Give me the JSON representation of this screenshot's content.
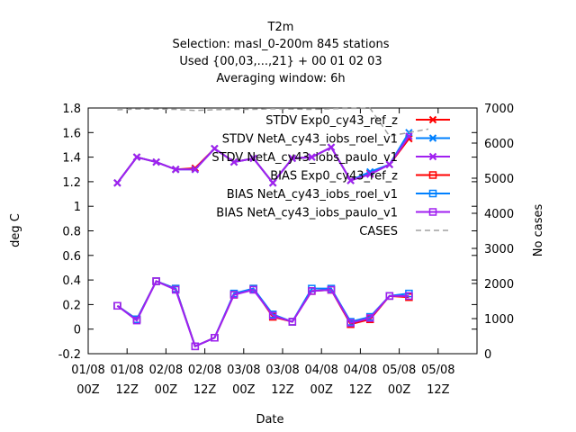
{
  "chart_data": {
    "type": "line",
    "title_lines": [
      "T2m",
      "Selection: masl_0-200m    845 stations",
      "Used {00,03,...,21} + 00 01 02 03",
      "Averaging window:  6h"
    ],
    "xlabel": "Date",
    "ylabel": "deg C",
    "y2label": "No cases",
    "ylim": [
      -0.2,
      1.8
    ],
    "y2lim": [
      0,
      7000
    ],
    "y_ticks": [
      "-0.2",
      "0",
      "0.2",
      "0.4",
      "0.6",
      "0.8",
      "1",
      "1.2",
      "1.4",
      "1.6",
      "1.8"
    ],
    "y2_ticks": [
      "0",
      "1000",
      "2000",
      "3000",
      "4000",
      "5000",
      "6000",
      "7000"
    ],
    "x_ticks": [
      {
        "t": 0,
        "line1": "01/08",
        "line2": "00Z"
      },
      {
        "t": 12,
        "line1": "01/08",
        "line2": "12Z"
      },
      {
        "t": 24,
        "line1": "02/08",
        "line2": "00Z"
      },
      {
        "t": 36,
        "line1": "02/08",
        "line2": "12Z"
      },
      {
        "t": 48,
        "line1": "03/08",
        "line2": "00Z"
      },
      {
        "t": 60,
        "line1": "03/08",
        "line2": "12Z"
      },
      {
        "t": 72,
        "line1": "04/08",
        "line2": "00Z"
      },
      {
        "t": 84,
        "line1": "04/08",
        "line2": "12Z"
      },
      {
        "t": 96,
        "line1": "05/08",
        "line2": "00Z"
      },
      {
        "t": 108,
        "line1": "05/08",
        "line2": "12Z"
      }
    ],
    "x": [
      9,
      15,
      21,
      27,
      33,
      39,
      45,
      51,
      57,
      63,
      69,
      75,
      81,
      87,
      93,
      99
    ],
    "series": [
      {
        "name": "STDV Exp0_cy43_ref_z",
        "color": "#ff0000",
        "marker": "x",
        "axis": "y1",
        "values": [
          1.19,
          1.4,
          1.36,
          1.3,
          1.31,
          1.47,
          1.36,
          1.39,
          1.19,
          1.39,
          1.4,
          1.48,
          1.21,
          1.27,
          1.34,
          1.55
        ]
      },
      {
        "name": "STDV NetA_cy43_iobs_roel_v1",
        "color": "#0080ff",
        "marker": "x",
        "axis": "y1",
        "values": [
          1.19,
          1.4,
          1.36,
          1.3,
          1.3,
          1.47,
          1.36,
          1.39,
          1.19,
          1.39,
          1.4,
          1.48,
          1.21,
          1.28,
          1.34,
          1.6
        ]
      },
      {
        "name": "STDV NetA_cy43_iobs_paulo_v1",
        "color": "#a020f0",
        "marker": "x",
        "axis": "y1",
        "values": [
          1.19,
          1.4,
          1.36,
          1.3,
          1.3,
          1.47,
          1.36,
          1.39,
          1.19,
          1.39,
          1.4,
          1.48,
          1.21,
          1.26,
          1.34,
          1.57
        ]
      },
      {
        "name": "BIAS Exp0_cy43_ref_z",
        "color": "#ff0000",
        "marker": "square",
        "axis": "y1",
        "values": [
          0.19,
          0.08,
          0.39,
          0.33,
          -0.14,
          -0.07,
          0.28,
          0.33,
          0.1,
          0.06,
          0.31,
          0.32,
          0.04,
          0.08,
          0.27,
          0.26
        ]
      },
      {
        "name": "BIAS NetA_cy43_iobs_roel_v1",
        "color": "#0080ff",
        "marker": "square",
        "axis": "y1",
        "values": [
          0.19,
          0.08,
          0.39,
          0.33,
          -0.14,
          -0.07,
          0.29,
          0.33,
          0.12,
          0.06,
          0.33,
          0.33,
          0.06,
          0.1,
          0.27,
          0.29
        ]
      },
      {
        "name": "BIAS NetA_cy43_iobs_paulo_v1",
        "color": "#a020f0",
        "marker": "square",
        "axis": "y1",
        "values": [
          0.19,
          0.07,
          0.39,
          0.32,
          -0.14,
          -0.07,
          0.28,
          0.32,
          0.11,
          0.06,
          0.31,
          0.32,
          0.05,
          0.09,
          0.27,
          0.27
        ]
      },
      {
        "name": "CASES",
        "color": "#a0a0a0",
        "marker": "none",
        "dash": true,
        "axis": "y2",
        "x": [
          9,
          15,
          21,
          27,
          33,
          39,
          45,
          51,
          57,
          63,
          69,
          75,
          81,
          87,
          93,
          99,
          105
        ],
        "values": [
          6950,
          6970,
          6970,
          6960,
          6930,
          6950,
          6960,
          6960,
          6980,
          6970,
          6960,
          6980,
          6990,
          6990,
          6200,
          6300,
          6400
        ]
      }
    ],
    "legend_position": "top-right",
    "grid": false
  }
}
